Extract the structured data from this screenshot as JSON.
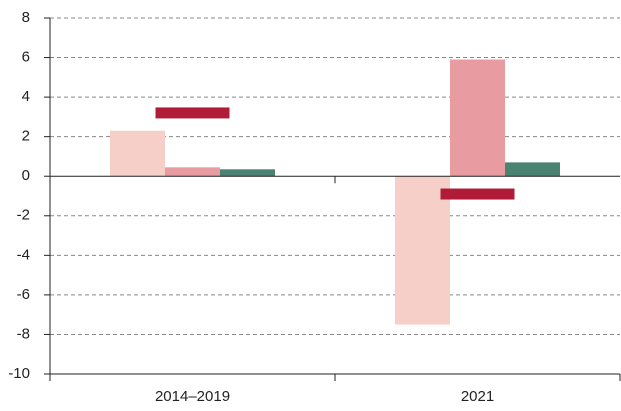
{
  "chart_data": {
    "type": "bar",
    "categories": [
      "2014–2019",
      "2021"
    ],
    "series": [
      {
        "color": "#f6cfc8",
        "values": [
          2.3,
          -7.5
        ]
      },
      {
        "color": "#e89ca1",
        "values": [
          0.45,
          5.9
        ]
      },
      {
        "color": "#4a8371",
        "values": [
          0.35,
          0.7
        ]
      },
      {
        "color": "#b01c38",
        "style": "marker",
        "values": [
          3.2,
          -0.9
        ]
      }
    ],
    "ylim": [
      -10,
      8
    ],
    "yticks": [
      -10,
      -8,
      -6,
      -4,
      -2,
      0,
      2,
      4,
      6,
      8
    ],
    "grid": true
  }
}
